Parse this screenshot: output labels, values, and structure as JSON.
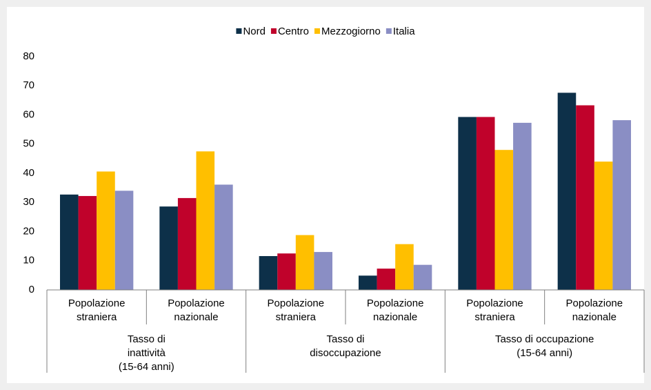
{
  "chart_data": {
    "type": "bar",
    "categories": [
      "Popolazione straniera",
      "Popolazione nazionale",
      "Popolazione straniera",
      "Popolazione nazionale",
      "Popolazione straniera",
      "Popolazione nazionale"
    ],
    "groups": [
      {
        "lines": [
          "Tasso di",
          "inattività",
          "(15-64 anni)"
        ],
        "span": 2
      },
      {
        "lines": [
          "Tasso di",
          "disoccupazione"
        ],
        "span": 2
      },
      {
        "lines": [
          "Tasso di occupazione",
          "(15-64 anni)"
        ],
        "span": 2
      }
    ],
    "series": [
      {
        "name": "Nord",
        "color": "#0d3049",
        "values": [
          32.7,
          28.6,
          11.6,
          4.9,
          59.3,
          67.6
        ]
      },
      {
        "name": "Centro",
        "color": "#c0022b",
        "values": [
          32.2,
          31.5,
          12.5,
          7.3,
          59.3,
          63.3
        ]
      },
      {
        "name": "Mezzogiorno",
        "color": "#ffbf00",
        "values": [
          40.6,
          47.5,
          18.8,
          15.7,
          48.0,
          44.0
        ]
      },
      {
        "name": "Italia",
        "color": "#8a8ec4",
        "values": [
          34.0,
          36.1,
          13.0,
          8.6,
          57.3,
          58.2
        ]
      }
    ],
    "ylim": [
      0,
      80
    ],
    "yticks": [
      0,
      10,
      20,
      30,
      40,
      50,
      60,
      70,
      80
    ],
    "legend": "top"
  }
}
